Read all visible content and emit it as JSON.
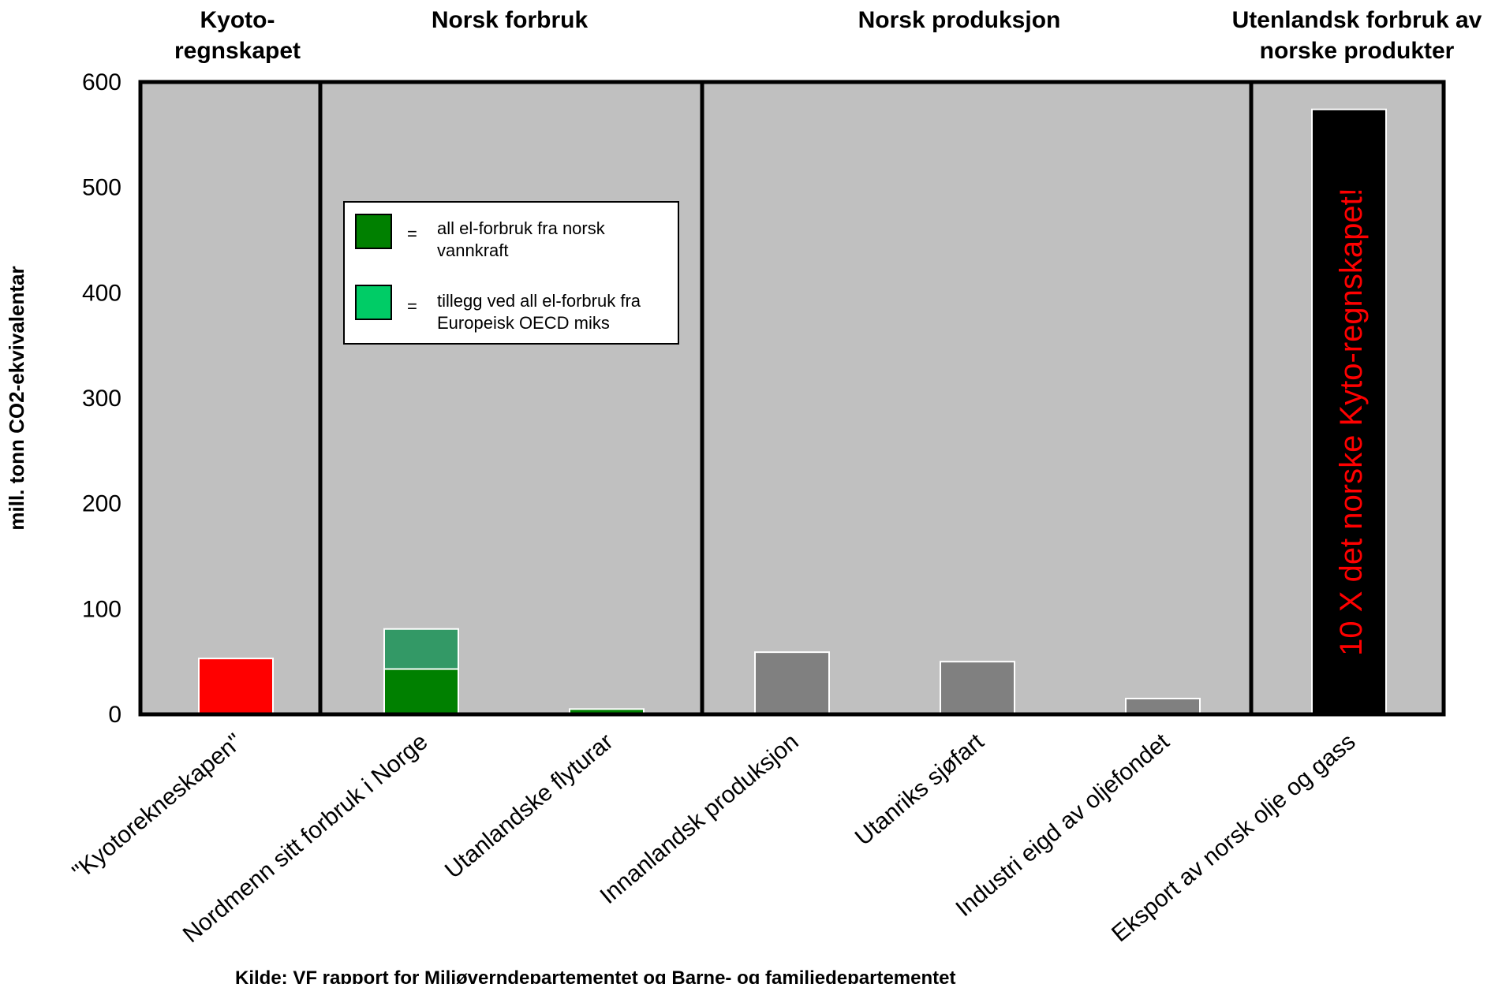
{
  "chart_data": {
    "type": "bar",
    "ylabel": "mill. tonn CO2-ekvivalentar",
    "ylim": [
      0,
      600
    ],
    "yticks": [
      "0",
      "100",
      "200",
      "300",
      "400",
      "500",
      "600"
    ],
    "grid": false,
    "categories": [
      "\"Kyotorekneskapen\"",
      "Nordmenn sitt forbruk i Norge",
      "Utanlandske flyturar",
      "Innanlandsk produksjon",
      "Utanriks sjøfart",
      "Industri eigd av oljefondet",
      "Eksport av norsk olje og gass"
    ],
    "series": [
      {
        "name": "all el-forbruk fra norsk vannkraft",
        "color": "#008000",
        "values": [
          null,
          43,
          5,
          null,
          null,
          null,
          null
        ]
      },
      {
        "name": "tillegg ved all el-forbruk fra Europeisk OECD miks",
        "color": "#339966",
        "values": [
          null,
          38,
          0,
          null,
          null,
          null,
          null
        ]
      },
      {
        "values": [
          53,
          null,
          null,
          59,
          50,
          15,
          574
        ],
        "colors": [
          "#ff0000",
          null,
          null,
          "#808080",
          "#808080",
          "#808080",
          "#000000"
        ]
      }
    ],
    "sections": [
      {
        "title": "Kyoto-\nregnskapet"
      },
      {
        "title": "Norsk forbruk"
      },
      {
        "title": "Norsk produksjon"
      },
      {
        "title": "Utenlandsk forbruk av\nnorske produkter"
      }
    ],
    "legend": {
      "placement": "upper-left inside Norsk forbruk section",
      "items": [
        {
          "swatch_color": "#008000",
          "symbol": "=",
          "text": "all el-forbruk fra norsk\nvannkraft"
        },
        {
          "swatch_color": "#00cc66",
          "symbol": "=",
          "text": "tillegg ved all el-forbruk fra\nEuropeisk OECD miks"
        }
      ]
    },
    "annotation": "10 X det norske Kyto-regnskapet!",
    "source": "Kilde: VF rapport for Miljøverndepartementet og Barne- og familiedepartementet"
  },
  "colors": {
    "plot_background": "#c0c0c0",
    "annotation": "#ff0000"
  }
}
